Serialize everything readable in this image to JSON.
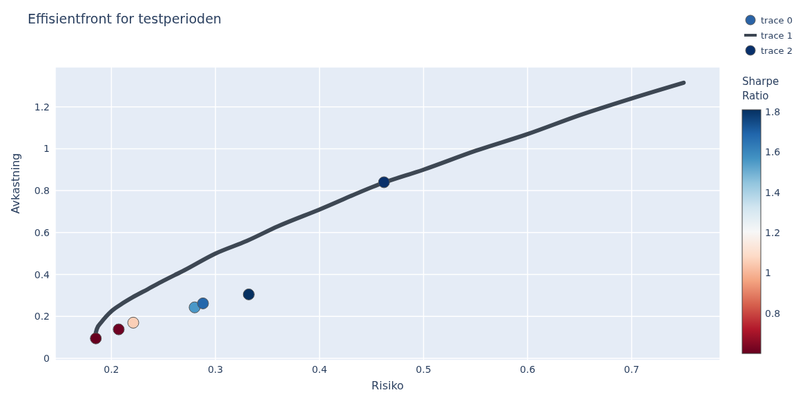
{
  "chart_data": {
    "type": "scatter",
    "title": "Effisientfront for testperioden",
    "xlabel": "Risiko",
    "ylabel": "Avkastning",
    "clabel": "Sharpe Ratio",
    "xlim": [
      0.146,
      0.785
    ],
    "ylim": [
      -0.01,
      1.39
    ],
    "xticks": [
      0.2,
      0.3,
      0.4,
      0.5,
      0.6,
      0.7
    ],
    "yticks": [
      0,
      0.2,
      0.4,
      0.6,
      0.8,
      1,
      1.2
    ],
    "clim": [
      0.6,
      1.81
    ],
    "cticks": [
      0.8,
      1,
      1.2,
      1.4,
      1.6,
      1.8
    ],
    "grid": true,
    "legend": "top right",
    "marker": "circle",
    "series": [
      {
        "name": "trace 0",
        "color": "#2a63a6",
        "colors": [
          "#67001f",
          "#6f0223",
          "#fbcfb7",
          "#4a98c8",
          "#2467ab",
          "#053061"
        ],
        "x": [
          0.185,
          0.207,
          0.221,
          0.28,
          0.288,
          0.332
        ],
        "values": [
          0.095,
          0.138,
          0.17,
          0.243,
          0.262,
          0.305
        ]
      },
      {
        "name": "trace 1",
        "type": "line",
        "marker": "none",
        "color": "#3d4753",
        "x": [
          0.184,
          0.186,
          0.19,
          0.195,
          0.2,
          0.21,
          0.22,
          0.235,
          0.25,
          0.27,
          0.3,
          0.33,
          0.36,
          0.4,
          0.46,
          0.5,
          0.55,
          0.6,
          0.65,
          0.7,
          0.75
        ],
        "values": [
          0.1,
          0.14,
          0.17,
          0.2,
          0.225,
          0.26,
          0.29,
          0.33,
          0.37,
          0.42,
          0.5,
          0.56,
          0.63,
          0.71,
          0.835,
          0.9,
          0.99,
          1.07,
          1.16,
          1.24,
          1.315
        ]
      },
      {
        "name": "trace 2",
        "color": "#08306b",
        "x": [
          0.462
        ],
        "values": [
          0.84
        ]
      }
    ]
  }
}
